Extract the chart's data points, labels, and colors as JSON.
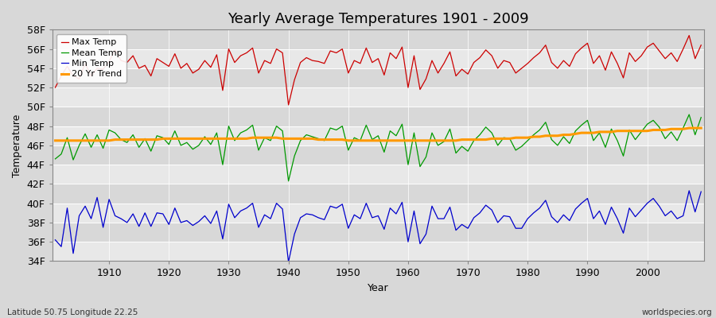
{
  "title": "Yearly Average Temperatures 1901 - 2009",
  "xlabel": "Year",
  "ylabel": "Temperature",
  "lat_lon_label": "Latitude 50.75 Longitude 22.25",
  "credit_label": "worldspecies.org",
  "years": [
    1901,
    1902,
    1903,
    1904,
    1905,
    1906,
    1907,
    1908,
    1909,
    1910,
    1911,
    1912,
    1913,
    1914,
    1915,
    1916,
    1917,
    1918,
    1919,
    1920,
    1921,
    1922,
    1923,
    1924,
    1925,
    1926,
    1927,
    1928,
    1929,
    1930,
    1931,
    1932,
    1933,
    1934,
    1935,
    1936,
    1937,
    1938,
    1939,
    1940,
    1941,
    1942,
    1943,
    1944,
    1945,
    1946,
    1947,
    1948,
    1949,
    1950,
    1951,
    1952,
    1953,
    1954,
    1955,
    1956,
    1957,
    1958,
    1959,
    1960,
    1961,
    1962,
    1963,
    1964,
    1965,
    1966,
    1967,
    1968,
    1969,
    1970,
    1971,
    1972,
    1973,
    1974,
    1975,
    1976,
    1977,
    1978,
    1979,
    1980,
    1981,
    1982,
    1983,
    1984,
    1985,
    1986,
    1987,
    1988,
    1989,
    1990,
    1991,
    1992,
    1993,
    1994,
    1995,
    1996,
    1997,
    1998,
    1999,
    2000,
    2001,
    2002,
    2003,
    2004,
    2005,
    2006,
    2007,
    2008,
    2009
  ],
  "max_temp_f": [
    52.0,
    53.2,
    54.2,
    53.2,
    52.9,
    54.5,
    53.2,
    54.0,
    53.9,
    54.7,
    55.9,
    54.8,
    54.6,
    55.3,
    54.0,
    54.3,
    53.2,
    55.0,
    54.6,
    54.2,
    55.5,
    54.0,
    54.5,
    53.5,
    53.9,
    54.8,
    54.1,
    55.4,
    51.7,
    56.0,
    54.6,
    55.3,
    55.6,
    56.1,
    53.5,
    54.8,
    54.5,
    56.0,
    55.6,
    50.2,
    52.8,
    54.6,
    55.1,
    54.8,
    54.7,
    54.5,
    55.8,
    55.6,
    56.0,
    53.5,
    54.8,
    54.5,
    56.1,
    54.6,
    55.0,
    53.3,
    55.6,
    55.0,
    56.2,
    52.0,
    55.3,
    51.8,
    52.9,
    54.8,
    53.5,
    54.5,
    55.7,
    53.2,
    53.9,
    53.4,
    54.6,
    55.1,
    55.9,
    55.3,
    54.0,
    54.8,
    54.6,
    53.5,
    54.0,
    54.5,
    55.1,
    55.6,
    56.4,
    54.6,
    54.0,
    54.8,
    54.2,
    55.5,
    56.1,
    56.6,
    54.5,
    55.3,
    53.8,
    55.7,
    54.5,
    53.0,
    55.6,
    54.7,
    55.3,
    56.2,
    56.6,
    55.8,
    55.0,
    55.6,
    54.7,
    56.0,
    57.4,
    55.0,
    56.4
  ],
  "mean_temp_f": [
    44.6,
    45.1,
    46.8,
    44.5,
    46.0,
    47.2,
    45.8,
    47.1,
    45.7,
    47.6,
    47.3,
    46.6,
    46.3,
    47.1,
    45.8,
    46.7,
    45.4,
    47.0,
    46.8,
    46.1,
    47.5,
    46.0,
    46.3,
    45.6,
    46.0,
    46.9,
    46.1,
    47.3,
    44.0,
    48.0,
    46.5,
    47.3,
    47.6,
    48.1,
    45.5,
    46.8,
    46.5,
    48.0,
    47.5,
    42.3,
    44.9,
    46.5,
    47.1,
    46.9,
    46.7,
    46.5,
    47.8,
    47.6,
    48.0,
    45.5,
    46.8,
    46.5,
    48.1,
    46.6,
    47.0,
    45.3,
    47.5,
    47.0,
    48.2,
    44.0,
    47.3,
    43.8,
    44.8,
    47.3,
    46.0,
    46.4,
    47.7,
    45.2,
    45.9,
    45.4,
    46.5,
    47.1,
    47.9,
    47.3,
    46.0,
    46.8,
    46.7,
    45.5,
    45.9,
    46.5,
    47.1,
    47.6,
    48.4,
    46.6,
    46.0,
    46.9,
    46.2,
    47.5,
    48.1,
    48.6,
    46.5,
    47.3,
    45.8,
    47.7,
    46.5,
    44.9,
    47.6,
    46.6,
    47.4,
    48.2,
    48.6,
    47.9,
    46.7,
    47.4,
    46.5,
    47.8,
    49.2,
    47.1,
    48.9
  ],
  "min_temp_f": [
    36.2,
    35.5,
    39.5,
    34.8,
    38.7,
    39.7,
    38.4,
    40.6,
    37.5,
    40.4,
    38.7,
    38.4,
    38.0,
    38.9,
    37.6,
    39.0,
    37.6,
    39.0,
    38.9,
    37.8,
    39.5,
    38.0,
    38.2,
    37.7,
    38.1,
    38.7,
    37.9,
    39.2,
    36.3,
    39.9,
    38.5,
    39.2,
    39.5,
    40.0,
    37.5,
    38.8,
    38.4,
    40.0,
    39.4,
    33.9,
    36.8,
    38.5,
    38.9,
    38.8,
    38.5,
    38.3,
    39.7,
    39.5,
    39.9,
    37.4,
    38.8,
    38.4,
    40.0,
    38.5,
    38.7,
    37.3,
    39.5,
    38.9,
    40.1,
    36.0,
    39.2,
    35.8,
    36.8,
    39.7,
    38.4,
    38.4,
    39.6,
    37.2,
    37.8,
    37.4,
    38.5,
    39.0,
    39.8,
    39.3,
    38.0,
    38.7,
    38.6,
    37.4,
    37.4,
    38.4,
    39.0,
    39.5,
    40.3,
    38.6,
    38.0,
    38.8,
    38.2,
    39.4,
    40.0,
    40.5,
    38.4,
    39.2,
    37.8,
    39.6,
    38.4,
    36.9,
    39.5,
    38.6,
    39.3,
    40.0,
    40.5,
    39.7,
    38.7,
    39.2,
    38.4,
    38.7,
    41.3,
    39.1,
    41.2
  ],
  "trend_temp_f": [
    46.5,
    46.5,
    46.5,
    46.5,
    46.5,
    46.5,
    46.5,
    46.5,
    46.5,
    46.5,
    46.6,
    46.6,
    46.6,
    46.6,
    46.6,
    46.6,
    46.6,
    46.6,
    46.7,
    46.7,
    46.7,
    46.7,
    46.7,
    46.7,
    46.7,
    46.7,
    46.7,
    46.7,
    46.7,
    46.7,
    46.7,
    46.7,
    46.7,
    46.8,
    46.8,
    46.8,
    46.8,
    46.8,
    46.7,
    46.7,
    46.7,
    46.7,
    46.7,
    46.7,
    46.6,
    46.6,
    46.6,
    46.6,
    46.6,
    46.5,
    46.5,
    46.5,
    46.5,
    46.5,
    46.5,
    46.5,
    46.5,
    46.5,
    46.5,
    46.5,
    46.5,
    46.5,
    46.5,
    46.5,
    46.5,
    46.5,
    46.5,
    46.5,
    46.6,
    46.6,
    46.6,
    46.6,
    46.6,
    46.7,
    46.7,
    46.7,
    46.7,
    46.8,
    46.8,
    46.8,
    46.9,
    46.9,
    47.0,
    47.0,
    47.0,
    47.1,
    47.1,
    47.2,
    47.3,
    47.3,
    47.3,
    47.4,
    47.4,
    47.4,
    47.5,
    47.5,
    47.5,
    47.5,
    47.5,
    47.5,
    47.6,
    47.6,
    47.6,
    47.7,
    47.7,
    47.7,
    47.8,
    47.8,
    47.8
  ],
  "max_color": "#cc0000",
  "mean_color": "#009900",
  "min_color": "#0000cc",
  "trend_color": "#ff9900",
  "bg_color": "#d8d8d8",
  "plot_bg_color": "#e8e8e8",
  "grid_color": "#ffffff",
  "band_color_light": "#e8e8e8",
  "band_color_dark": "#d8d8d8",
  "ylim": [
    34,
    58
  ],
  "yticks": [
    34,
    36,
    38,
    40,
    42,
    44,
    46,
    48,
    50,
    52,
    54,
    56,
    58
  ],
  "ytick_labels": [
    "34F",
    "36F",
    "38F",
    "40F",
    "42F",
    "44F",
    "46F",
    "48F",
    "50F",
    "52F",
    "54F",
    "56F",
    "58F"
  ],
  "xticks": [
    1910,
    1920,
    1930,
    1940,
    1950,
    1960,
    1970,
    1980,
    1990,
    2000
  ],
  "title_fontsize": 13,
  "axis_fontsize": 9,
  "legend_fontsize": 8,
  "linewidth": 0.9,
  "trend_linewidth": 2.2
}
